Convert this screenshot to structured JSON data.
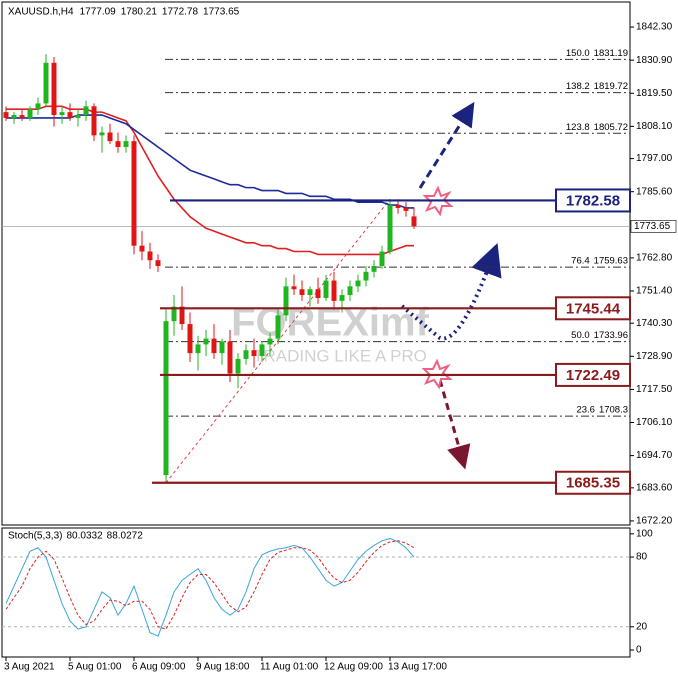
{
  "chart_data": {
    "type": "candlestick",
    "symbol": "XAUUSD.h,H4",
    "x": [
      "3 Aug 2021",
      null,
      null,
      null,
      null,
      null,
      null,
      null,
      "5 Aug 01:00",
      null,
      null,
      null,
      null,
      null,
      null,
      null,
      "6 Aug 09:00",
      null,
      null,
      null,
      null,
      null,
      null,
      null,
      "9 Aug 18:00",
      null,
      null,
      null,
      null,
      null,
      null,
      null,
      "11 Aug 01:00",
      null,
      null,
      null,
      null,
      null,
      null,
      null,
      "12 Aug 09:00",
      null,
      null,
      null,
      null,
      null,
      null,
      null,
      "13 Aug 17:00",
      null,
      null,
      null
    ],
    "open": [
      1813,
      1811,
      1812,
      1811,
      1814,
      1816,
      1830,
      1812,
      1813,
      1811,
      1812,
      1815,
      1805,
      1806,
      1803,
      1801,
      1803,
      1767,
      1765,
      1762,
      1688,
      1741,
      1746,
      1740,
      1730,
      1733,
      1735,
      1730,
      1734,
      1723,
      1728,
      1731,
      1729,
      1733,
      1735,
      1743,
      1753,
      1752,
      1750,
      1752,
      1749,
      1755,
      1748,
      1750,
      1753,
      1755,
      1758,
      1760,
      1765,
      1781,
      1780,
      1777.09
    ],
    "high": [
      1815,
      1813,
      1814,
      1815,
      1818,
      1833,
      1832,
      1815,
      1816,
      1814,
      1817,
      1816,
      1808,
      1809,
      1806,
      1805,
      1805,
      1772,
      1768,
      1764,
      1745,
      1750,
      1753,
      1744,
      1736,
      1738,
      1740,
      1735,
      1738,
      1730,
      1733,
      1735,
      1734,
      1737,
      1745,
      1756,
      1757,
      1755,
      1753,
      1756,
      1757,
      1758,
      1752,
      1755,
      1757,
      1760,
      1762,
      1767,
      1783,
      1783,
      1782,
      1780.21
    ],
    "low": [
      1810,
      1809,
      1810,
      1810,
      1812,
      1815,
      1808,
      1809,
      1810,
      1808,
      1810,
      1803,
      1799,
      1802,
      1799,
      1799,
      1764,
      1762,
      1759,
      1758,
      1685.35,
      1736,
      1738,
      1727,
      1724,
      1729,
      1728,
      1726,
      1720,
      1718,
      1726,
      1725,
      1727,
      1729,
      1733,
      1741,
      1750,
      1748,
      1746,
      1747,
      1748,
      1745,
      1744,
      1748,
      1751,
      1753,
      1756,
      1759,
      1764,
      1778,
      1777,
      1772.78
    ],
    "close": [
      1811,
      1812,
      1811,
      1814,
      1816,
      1830,
      1812,
      1813,
      1811,
      1812,
      1815,
      1805,
      1806,
      1803,
      1801,
      1803,
      1767,
      1765,
      1762,
      1760,
      1741,
      1746,
      1740,
      1730,
      1733,
      1735,
      1730,
      1734,
      1723,
      1728,
      1731,
      1729,
      1733,
      1735,
      1743,
      1753,
      1752,
      1750,
      1752,
      1749,
      1755,
      1748,
      1750,
      1753,
      1755,
      1758,
      1760,
      1765,
      1781,
      1780,
      1779,
      1773.65
    ],
    "color_up": "#1fb51f",
    "color_down": "#e01515",
    "moving_averages": [
      {
        "color": "#e02020",
        "values": [
          1814,
          1814,
          1814,
          1814,
          1814,
          1815,
          1815,
          1815,
          1814,
          1814,
          1814,
          1813,
          1813,
          1812,
          1811,
          1810,
          1806,
          1801,
          1796,
          1791,
          1787,
          1783,
          1780,
          1777,
          1775,
          1773,
          1772,
          1771,
          1770,
          1769,
          1768,
          1768,
          1767,
          1767,
          1766,
          1766,
          1765,
          1765,
          1765,
          1764,
          1764,
          1764,
          1764,
          1764,
          1764,
          1764,
          1764,
          1764,
          1765,
          1766,
          1767,
          1767
        ]
      },
      {
        "color": "#1c2a9c",
        "values": [
          1811,
          1811,
          1811,
          1811,
          1811,
          1811,
          1811,
          1811,
          1811,
          1812,
          1812,
          1812,
          1812,
          1811,
          1810,
          1809,
          1807,
          1805,
          1803,
          1801,
          1799,
          1797,
          1795,
          1793,
          1792,
          1791,
          1790,
          1789,
          1788,
          1788,
          1787,
          1787,
          1786,
          1786,
          1786,
          1785,
          1785,
          1785,
          1784,
          1784,
          1784,
          1783,
          1783,
          1783,
          1782,
          1782,
          1782,
          1782,
          1781,
          1781,
          1780,
          1780
        ]
      }
    ],
    "ylim": [
      1670.8,
      1849.9
    ],
    "yticks": [
      {
        "value": 1842.3,
        "label": "1842.30"
      },
      {
        "value": 1830.9,
        "label": "1830.90"
      },
      {
        "value": 1819.5,
        "label": "1819.50"
      },
      {
        "value": 1808.1,
        "label": "1808.10"
      },
      {
        "value": 1797,
        "label": "1797.00"
      },
      {
        "value": 1785.6,
        "label": "1785.60"
      },
      {
        "value": 1762.8,
        "label": "1762.80"
      },
      {
        "value": 1751.4,
        "label": "1751.40"
      },
      {
        "value": 1740.3,
        "label": "1740.30"
      },
      {
        "value": 1728.9,
        "label": "1728.90"
      },
      {
        "value": 1717.5,
        "label": "1717.50"
      },
      {
        "value": 1706.1,
        "label": "1706.10"
      },
      {
        "value": 1694.7,
        "label": "1694.70"
      },
      {
        "value": 1683.6,
        "label": "1683.60"
      },
      {
        "value": 1672.2,
        "label": "1672.20"
      }
    ],
    "levels": [
      {
        "value": 1782.58,
        "color": "#1a237e"
      },
      {
        "value": 1745.44,
        "color": "#8b1a1a"
      },
      {
        "value": 1722.49,
        "color": "#8b1a1a"
      },
      {
        "value": 1685.35,
        "color": "#8b1a1a"
      }
    ],
    "fib": {
      "color": "#333333",
      "diagonal_color": "#e04040",
      "levels": [
        {
          "ratio": "150.0",
          "value": 1831.19
        },
        {
          "ratio": "138.2",
          "value": 1819.72
        },
        {
          "ratio": "123.8",
          "value": 1805.72
        },
        {
          "ratio": "76.4",
          "value": 1759.63
        },
        {
          "ratio": "50.0",
          "value": 1733.96
        },
        {
          "ratio": "23.6",
          "value": 1708.3
        }
      ]
    },
    "watermark": [
      "FOREXimf",
      "TRADING LIKE A PRO"
    ],
    "stoch": {
      "title": "Stoch(5,3,3)",
      "ylim": [
        -6,
        105
      ],
      "yticks": [
        100,
        80,
        20,
        0
      ],
      "grid_levels": [
        80,
        20
      ],
      "series": [
        {
          "color": "#3aa6d8",
          "dash": false,
          "values": [
            40,
            55,
            70,
            85,
            88,
            80,
            60,
            40,
            25,
            18,
            20,
            35,
            50,
            45,
            30,
            40,
            55,
            35,
            15,
            12,
            30,
            50,
            60,
            65,
            70,
            60,
            45,
            35,
            30,
            35,
            50,
            70,
            82,
            85,
            87,
            88,
            90,
            88,
            80,
            70,
            60,
            55,
            58,
            68,
            78,
            85,
            90,
            94,
            96,
            93,
            88,
            80.0332
          ]
        },
        {
          "color": "#e02020",
          "dash": true,
          "values": [
            35,
            45,
            55,
            70,
            80,
            85,
            78,
            62,
            45,
            30,
            22,
            25,
            35,
            43,
            42,
            38,
            42,
            42,
            35,
            20,
            18,
            30,
            45,
            58,
            65,
            65,
            58,
            48,
            38,
            33,
            37,
            50,
            65,
            78,
            84,
            86,
            88,
            88,
            86,
            80,
            70,
            62,
            58,
            60,
            67,
            76,
            84,
            90,
            93,
            94,
            92,
            88.0272
          ]
        }
      ]
    }
  }
}
